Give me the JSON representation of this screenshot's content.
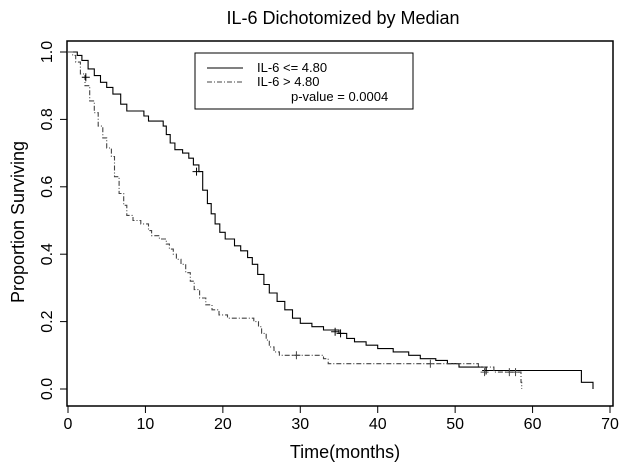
{
  "chart_data": {
    "type": "line",
    "title": "IL-6 Dichotomized by Median",
    "xlabel": "Time(months)",
    "ylabel": "Proportion Surviving",
    "xlim": [
      0,
      70
    ],
    "ylim": [
      0,
      1
    ],
    "xticks": [
      0,
      10,
      20,
      30,
      40,
      50,
      60,
      70
    ],
    "yticks": [
      "0.0",
      "0.2",
      "0.4",
      "0.6",
      "0.8",
      "1.0"
    ],
    "grid": false,
    "legend_position": "top-center",
    "annotation": "p-value = 0.0004",
    "series": [
      {
        "name": "IL-6 <= 4.80",
        "style": "solid",
        "color": "#000000",
        "steps": [
          [
            0,
            1.0
          ],
          [
            1.2,
            0.99
          ],
          [
            1.8,
            0.975
          ],
          [
            2.6,
            0.95
          ],
          [
            3.4,
            0.93
          ],
          [
            4.2,
            0.91
          ],
          [
            5.0,
            0.895
          ],
          [
            5.8,
            0.875
          ],
          [
            6.8,
            0.845
          ],
          [
            7.6,
            0.825
          ],
          [
            9.8,
            0.81
          ],
          [
            10.4,
            0.795
          ],
          [
            12.3,
            0.78
          ],
          [
            12.7,
            0.755
          ],
          [
            13.2,
            0.73
          ],
          [
            13.8,
            0.71
          ],
          [
            14.8,
            0.7
          ],
          [
            15.6,
            0.685
          ],
          [
            16.2,
            0.665
          ],
          [
            16.9,
            0.645
          ],
          [
            17.4,
            0.59
          ],
          [
            18.0,
            0.55
          ],
          [
            18.5,
            0.52
          ],
          [
            19.0,
            0.49
          ],
          [
            19.6,
            0.465
          ],
          [
            20.3,
            0.445
          ],
          [
            21.5,
            0.425
          ],
          [
            22.3,
            0.41
          ],
          [
            23.2,
            0.39
          ],
          [
            23.8,
            0.37
          ],
          [
            24.5,
            0.34
          ],
          [
            25.3,
            0.31
          ],
          [
            26.0,
            0.285
          ],
          [
            27.0,
            0.26
          ],
          [
            28.0,
            0.235
          ],
          [
            29.0,
            0.21
          ],
          [
            30.0,
            0.195
          ],
          [
            31.5,
            0.185
          ],
          [
            33.0,
            0.175
          ],
          [
            35.0,
            0.165
          ],
          [
            36.0,
            0.15
          ],
          [
            37.0,
            0.14
          ],
          [
            38.5,
            0.13
          ],
          [
            40.0,
            0.12
          ],
          [
            42.0,
            0.11
          ],
          [
            44.0,
            0.1
          ],
          [
            45.5,
            0.09
          ],
          [
            47.5,
            0.085
          ],
          [
            49.0,
            0.075
          ],
          [
            50.5,
            0.065
          ],
          [
            54.0,
            0.055
          ],
          [
            66.3,
            0.02
          ],
          [
            67.8,
            0.0
          ]
        ],
        "censored": [
          [
            2.3,
            0.925
          ],
          [
            16.6,
            0.645
          ],
          [
            34.5,
            0.17
          ],
          [
            35.2,
            0.165
          ],
          [
            54.0,
            0.055
          ]
        ]
      },
      {
        "name": "IL-6 > 4.80",
        "style": "dashdot",
        "color": "#444444",
        "steps": [
          [
            0,
            1.0
          ],
          [
            0.6,
            0.99
          ],
          [
            1.0,
            0.97
          ],
          [
            1.6,
            0.935
          ],
          [
            2.2,
            0.9
          ],
          [
            2.8,
            0.855
          ],
          [
            3.4,
            0.82
          ],
          [
            3.9,
            0.78
          ],
          [
            4.5,
            0.745
          ],
          [
            5.0,
            0.715
          ],
          [
            5.6,
            0.69
          ],
          [
            6.0,
            0.63
          ],
          [
            6.6,
            0.58
          ],
          [
            7.2,
            0.545
          ],
          [
            7.6,
            0.515
          ],
          [
            8.4,
            0.5
          ],
          [
            9.4,
            0.49
          ],
          [
            10.4,
            0.47
          ],
          [
            10.8,
            0.455
          ],
          [
            11.8,
            0.445
          ],
          [
            12.7,
            0.43
          ],
          [
            13.1,
            0.415
          ],
          [
            13.6,
            0.4
          ],
          [
            14.0,
            0.385
          ],
          [
            14.6,
            0.37
          ],
          [
            15.2,
            0.345
          ],
          [
            15.8,
            0.32
          ],
          [
            16.3,
            0.295
          ],
          [
            17.0,
            0.27
          ],
          [
            17.8,
            0.25
          ],
          [
            18.6,
            0.235
          ],
          [
            19.5,
            0.22
          ],
          [
            20.6,
            0.21
          ],
          [
            24.0,
            0.2
          ],
          [
            24.6,
            0.185
          ],
          [
            25.0,
            0.165
          ],
          [
            25.6,
            0.145
          ],
          [
            26.0,
            0.125
          ],
          [
            26.6,
            0.11
          ],
          [
            27.3,
            0.1
          ],
          [
            33.0,
            0.09
          ],
          [
            33.6,
            0.075
          ],
          [
            53.0,
            0.065
          ],
          [
            55.0,
            0.05
          ],
          [
            58.5,
            0.02
          ],
          [
            58.6,
            0.0
          ]
        ],
        "censored": [
          [
            29.5,
            0.1
          ],
          [
            46.8,
            0.075
          ],
          [
            53.8,
            0.05
          ],
          [
            57.0,
            0.05
          ],
          [
            57.8,
            0.05
          ]
        ]
      }
    ]
  }
}
